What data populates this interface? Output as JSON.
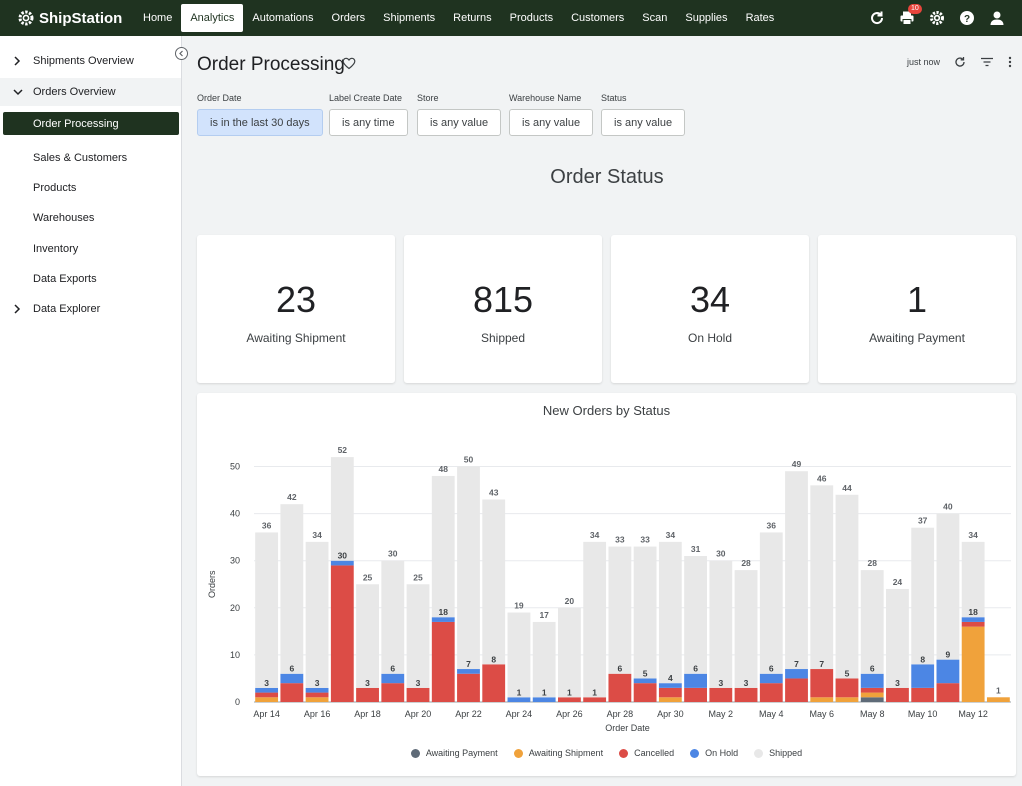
{
  "app": {
    "name": "ShipStation"
  },
  "nav": {
    "items": [
      "Home",
      "Analytics",
      "Automations",
      "Orders",
      "Shipments",
      "Returns",
      "Products",
      "Customers",
      "Scan",
      "Supplies",
      "Rates"
    ],
    "active": "Analytics",
    "print_badge": "10"
  },
  "sidebar": {
    "shipments_overview": "Shipments Overview",
    "orders_overview": "Orders Overview",
    "order_processing": "Order Processing",
    "sales_customers": "Sales & Customers",
    "products": "Products",
    "warehouses": "Warehouses",
    "inventory": "Inventory",
    "data_exports": "Data Exports",
    "data_explorer": "Data Explorer"
  },
  "page": {
    "title": "Order Processing",
    "refreshed": "just now",
    "section_title": "Order Status"
  },
  "filters": [
    {
      "label": "Order Date",
      "value": "is in the last 30 days"
    },
    {
      "label": "Label Create Date",
      "value": "is any time"
    },
    {
      "label": "Store",
      "value": "is any value"
    },
    {
      "label": "Warehouse Name",
      "value": "is any value"
    },
    {
      "label": "Status",
      "value": "is any value"
    }
  ],
  "stats": [
    {
      "value": "23",
      "label": "Awaiting Shipment"
    },
    {
      "value": "815",
      "label": "Shipped"
    },
    {
      "value": "34",
      "label": "On Hold"
    },
    {
      "value": "1",
      "label": "Awaiting Payment"
    }
  ],
  "colors": {
    "nav_bg": "#1f3320",
    "awaiting_payment": "#5f6b78",
    "awaiting_shipment": "#f0a23b",
    "cancelled": "#dc4c46",
    "on_hold": "#4c86e4",
    "shipped": "#e8e8e8"
  },
  "chart_data": {
    "type": "bar",
    "stacked": true,
    "title": "New Orders by Status",
    "xlabel": "Order Date",
    "ylabel": "Orders",
    "ylim": [
      0,
      55
    ],
    "yticks": [
      0,
      10,
      20,
      30,
      40,
      50
    ],
    "grid": true,
    "legend_position": "bottom",
    "categories": [
      "Apr 14",
      "Apr 15",
      "Apr 16",
      "Apr 17",
      "Apr 18",
      "Apr 19",
      "Apr 20",
      "Apr 21",
      "Apr 22",
      "Apr 23",
      "Apr 24",
      "Apr 25",
      "Apr 26",
      "Apr 27",
      "Apr 28",
      "Apr 29",
      "Apr 30",
      "May 1",
      "May 2",
      "May 3",
      "May 4",
      "May 5",
      "May 6",
      "May 7",
      "May 8",
      "May 9",
      "May 10",
      "May 11",
      "May 12",
      "May 13"
    ],
    "tick_labels": [
      "Apr 14",
      "",
      "Apr 16",
      "",
      "Apr 18",
      "",
      "Apr 20",
      "",
      "Apr 22",
      "",
      "Apr 24",
      "",
      "Apr 26",
      "",
      "Apr 28",
      "",
      "Apr 30",
      "",
      "May 2",
      "",
      "May 4",
      "",
      "May 6",
      "",
      "May 8",
      "",
      "May 10",
      "",
      "May 12",
      ""
    ],
    "series": [
      {
        "name": "Awaiting Payment",
        "values": [
          0,
          0,
          0,
          0,
          0,
          0,
          0,
          0,
          0,
          0,
          0,
          0,
          0,
          0,
          0,
          0,
          0,
          0,
          0,
          0,
          0,
          0,
          0,
          0,
          1,
          0,
          0,
          0,
          0,
          0
        ]
      },
      {
        "name": "Awaiting Shipment",
        "values": [
          1,
          0,
          1,
          0,
          0,
          0,
          0,
          0,
          0,
          0,
          0,
          0,
          0,
          0,
          0,
          0,
          1,
          0,
          0,
          0,
          0,
          0,
          1,
          1,
          1,
          0,
          0,
          0,
          16,
          1
        ]
      },
      {
        "name": "Cancelled",
        "values": [
          1,
          4,
          1,
          29,
          3,
          4,
          3,
          17,
          6,
          8,
          0,
          0,
          1,
          1,
          6,
          4,
          2,
          3,
          3,
          3,
          4,
          5,
          6,
          4,
          1,
          3,
          3,
          4,
          1,
          0
        ]
      },
      {
        "name": "On Hold",
        "values": [
          1,
          2,
          1,
          1,
          0,
          2,
          0,
          1,
          1,
          0,
          1,
          1,
          0,
          0,
          0,
          1,
          1,
          3,
          0,
          0,
          2,
          2,
          0,
          0,
          3,
          0,
          5,
          5,
          1,
          0
        ]
      },
      {
        "name": "Shipped",
        "values": [
          33,
          36,
          31,
          22,
          22,
          24,
          22,
          30,
          43,
          35,
          18,
          16,
          19,
          33,
          27,
          28,
          30,
          25,
          27,
          25,
          30,
          42,
          39,
          39,
          22,
          21,
          29,
          31,
          16,
          0
        ]
      }
    ],
    "totals": [
      36,
      42,
      34,
      52,
      25,
      30,
      25,
      48,
      50,
      43,
      19,
      17,
      20,
      34,
      33,
      33,
      34,
      31,
      30,
      28,
      36,
      49,
      46,
      44,
      28,
      24,
      37,
      40,
      34,
      1
    ],
    "non_shipped_labels": [
      3,
      6,
      3,
      30,
      3,
      6,
      3,
      18,
      7,
      8,
      1,
      1,
      1,
      1,
      6,
      5,
      4,
      6,
      3,
      3,
      6,
      7,
      7,
      5,
      6,
      3,
      8,
      9,
      18,
      null
    ]
  }
}
